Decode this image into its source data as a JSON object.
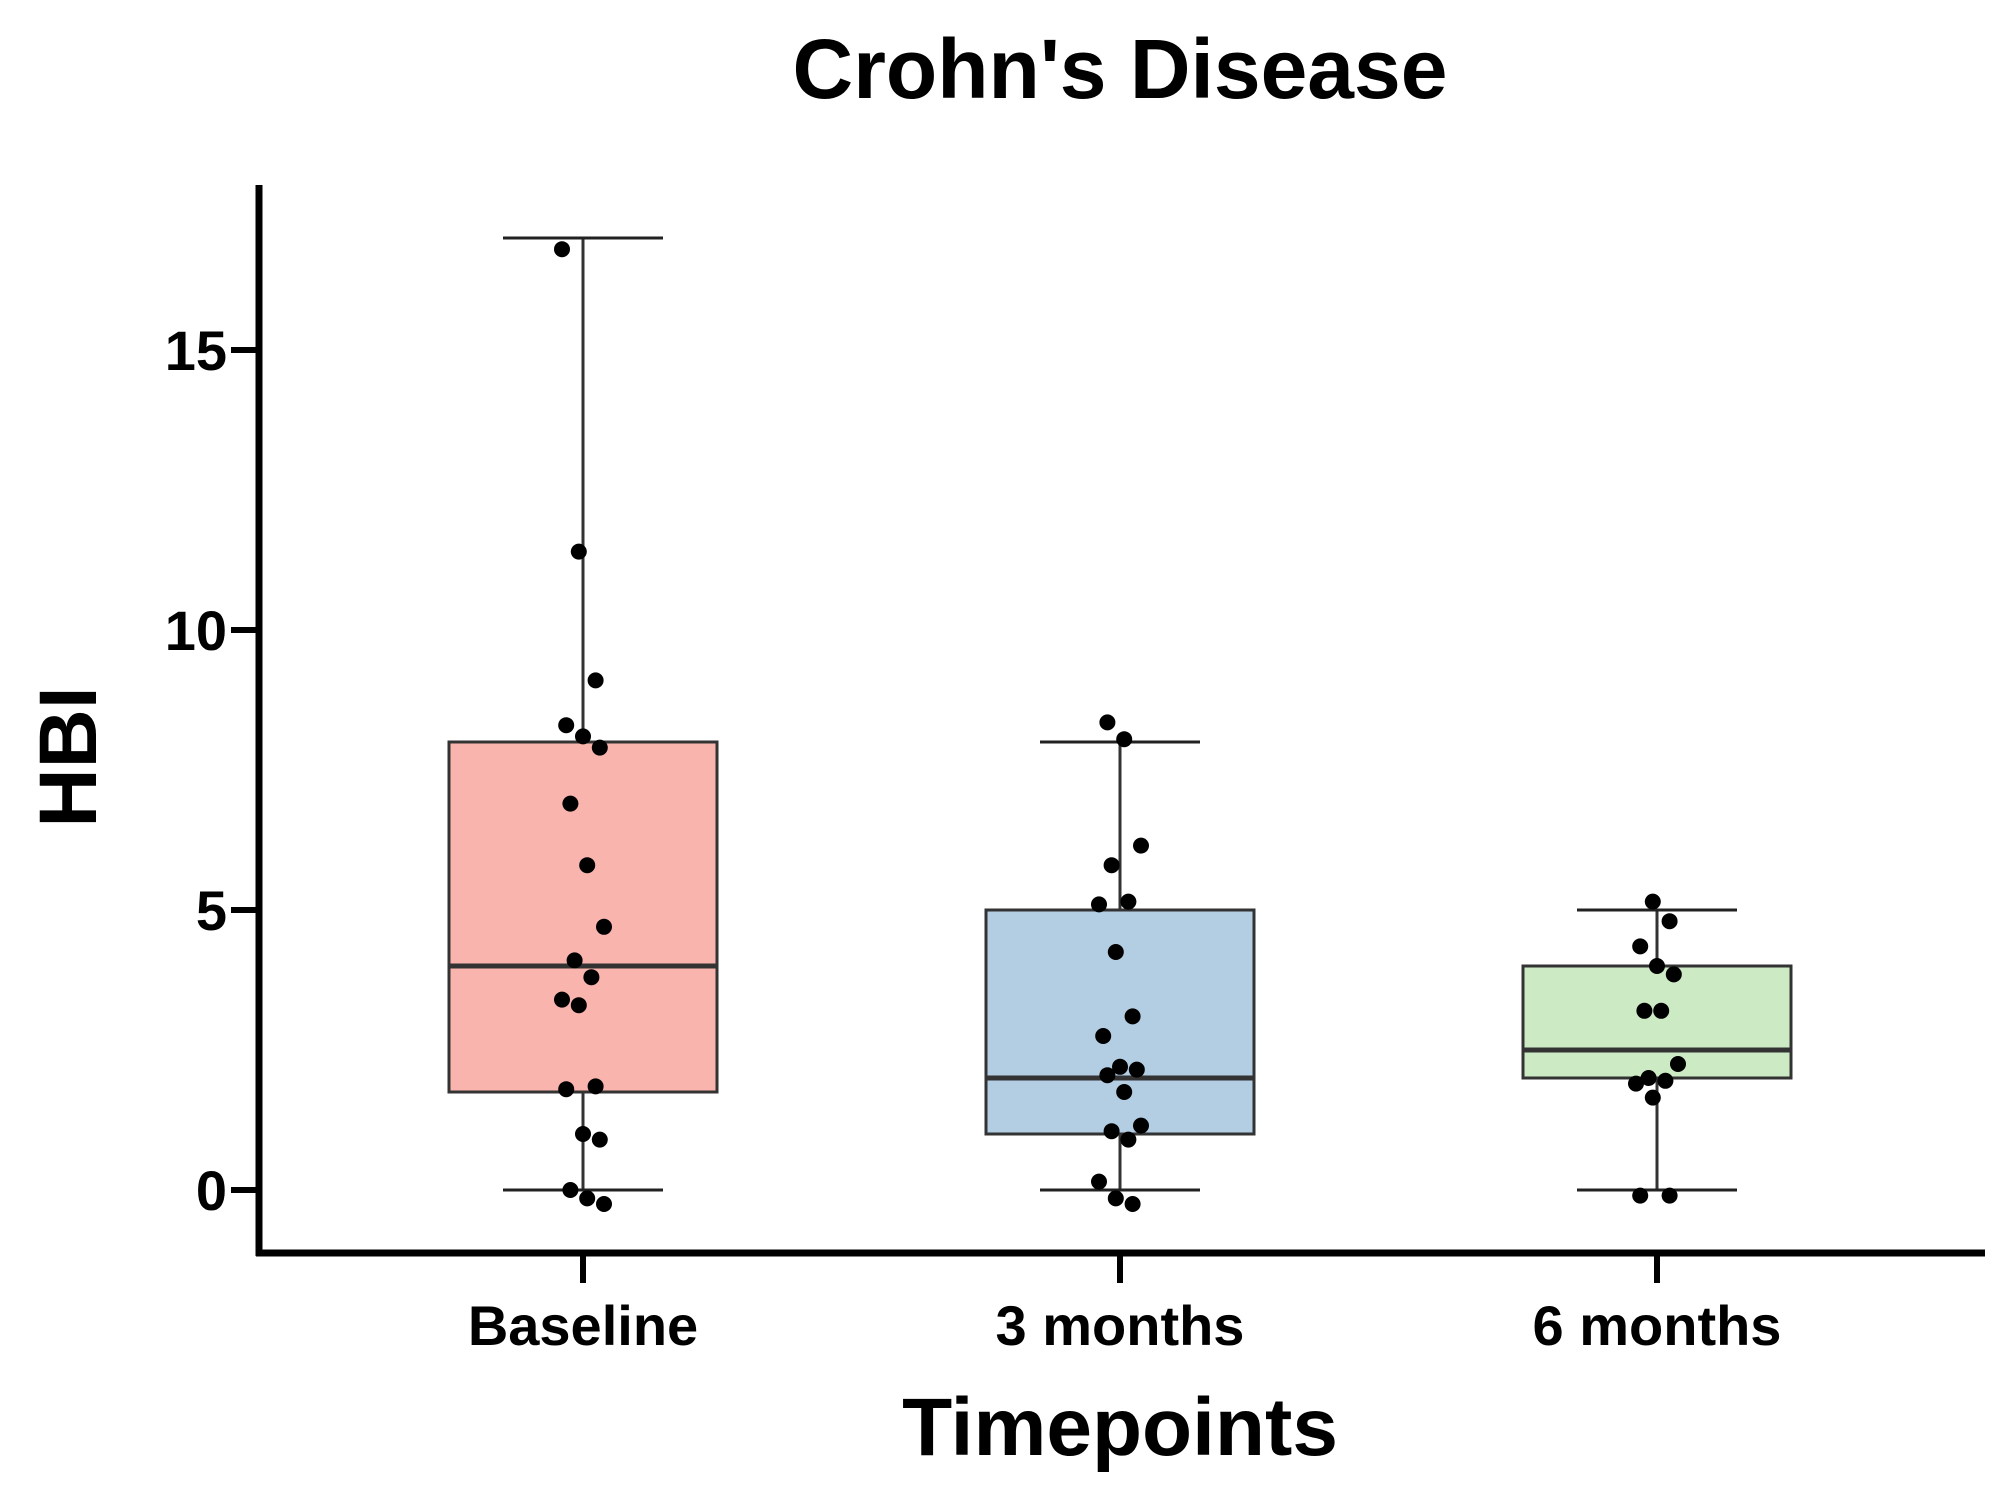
{
  "chart_data": {
    "type": "box",
    "title": "Crohn's Disease",
    "xlabel": "Timepoints",
    "ylabel": "HBI",
    "ylim": [
      -1.2,
      18
    ],
    "yticks": [
      0,
      5,
      10,
      15
    ],
    "grid": false,
    "legend": "none",
    "categories": [
      "Baseline",
      "3 months",
      "6 months"
    ],
    "series": [
      {
        "category": "Baseline",
        "color": "#F9B4AE",
        "min": 0,
        "q1": 1.75,
        "median": 4,
        "q3": 8,
        "max": 17,
        "points": [
          16.8,
          11.4,
          9.1,
          8.3,
          8.1,
          7.9,
          6.9,
          5.8,
          4.7,
          4.1,
          3.8,
          3.4,
          3.3,
          1.85,
          1.8,
          1.0,
          0.9,
          0.0,
          -0.15,
          -0.25
        ]
      },
      {
        "category": "3 months",
        "color": "#B3CDE3",
        "min": 0,
        "q1": 1,
        "median": 2,
        "q3": 5,
        "max": 8,
        "points": [
          8.35,
          8.05,
          6.15,
          5.8,
          5.15,
          5.1,
          4.25,
          3.1,
          2.75,
          2.2,
          2.15,
          2.05,
          1.75,
          1.15,
          1.05,
          0.9,
          0.15,
          -0.15,
          -0.25
        ]
      },
      {
        "category": "6 months",
        "color": "#CCEBC5",
        "min": 0,
        "q1": 2,
        "median": 2.5,
        "q3": 4,
        "max": 5,
        "points": [
          5.15,
          4.8,
          4.35,
          4.0,
          3.85,
          3.2,
          3.2,
          2.25,
          2.0,
          1.95,
          1.9,
          1.65,
          -0.1,
          -0.1
        ]
      }
    ]
  }
}
